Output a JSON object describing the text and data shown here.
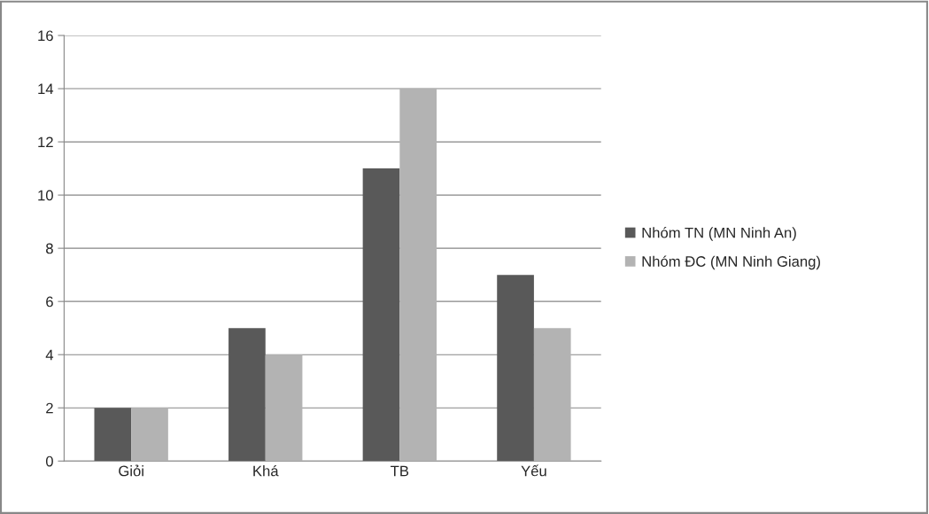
{
  "chart_data": {
    "type": "bar",
    "categories": [
      "Giỏi",
      "Khá",
      "TB",
      "Yếu"
    ],
    "series": [
      {
        "name": "Nhóm TN (MN Ninh An)",
        "color": "#595959",
        "values": [
          2,
          5,
          11,
          7
        ]
      },
      {
        "name": "Nhóm ĐC (MN Ninh Giang)",
        "color": "#b3b3b3",
        "values": [
          2,
          4,
          14,
          5
        ]
      }
    ],
    "ylim": [
      0,
      16
    ],
    "yticks": [
      0,
      2,
      4,
      6,
      8,
      10,
      12,
      14,
      16
    ],
    "grid": "y",
    "legend": "right"
  }
}
